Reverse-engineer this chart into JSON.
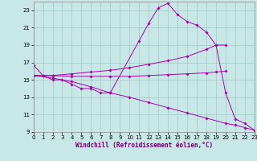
{
  "xlabel": "Windchill (Refroidissement éolien,°C)",
  "xlim": [
    0,
    23
  ],
  "ylim": [
    9,
    24
  ],
  "yticks": [
    9,
    11,
    13,
    15,
    17,
    19,
    21,
    23
  ],
  "xticks": [
    0,
    1,
    2,
    3,
    4,
    5,
    6,
    7,
    8,
    9,
    10,
    11,
    12,
    13,
    14,
    15,
    16,
    17,
    18,
    19,
    20,
    21,
    22,
    23
  ],
  "background_color": "#c8e8e8",
  "line_color": "#aa00aa",
  "grid_color": "#a0c8c8",
  "lines": [
    {
      "x": [
        0,
        1,
        2,
        3,
        4,
        5,
        6,
        7,
        8,
        11,
        12,
        13,
        14,
        15,
        16,
        17,
        18,
        19,
        20,
        21,
        22,
        23
      ],
      "y": [
        16.7,
        15.5,
        15.0,
        15.0,
        14.5,
        14.0,
        14.0,
        13.5,
        13.5,
        19.5,
        21.5,
        23.3,
        23.8,
        22.5,
        21.7,
        21.3,
        20.5,
        19.0,
        13.5,
        10.5,
        10.0,
        9.2
      ]
    },
    {
      "x": [
        0,
        1,
        2,
        4,
        6,
        8,
        10,
        12,
        14,
        16,
        18,
        19,
        20
      ],
      "y": [
        15.5,
        15.5,
        15.5,
        15.7,
        15.9,
        16.1,
        16.4,
        16.8,
        17.2,
        17.7,
        18.5,
        19.0,
        19.0
      ]
    },
    {
      "x": [
        0,
        2,
        4,
        6,
        8,
        10,
        12,
        14,
        16,
        18,
        19,
        20
      ],
      "y": [
        15.5,
        15.5,
        15.4,
        15.4,
        15.4,
        15.4,
        15.5,
        15.6,
        15.7,
        15.8,
        15.9,
        16.0
      ]
    },
    {
      "x": [
        0,
        2,
        4,
        6,
        8,
        10,
        12,
        14,
        16,
        18,
        20,
        21,
        22,
        23
      ],
      "y": [
        15.5,
        15.2,
        14.8,
        14.2,
        13.5,
        13.0,
        12.4,
        11.8,
        11.2,
        10.6,
        10.0,
        9.8,
        9.5,
        9.2
      ]
    }
  ]
}
